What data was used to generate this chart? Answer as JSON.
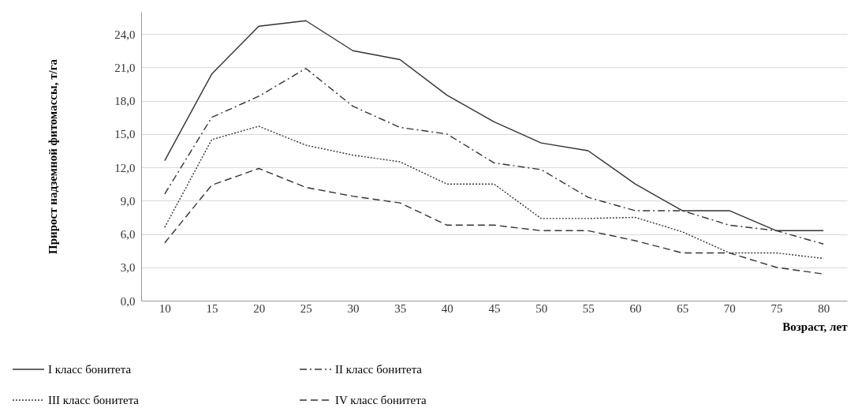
{
  "chart_data": {
    "type": "line",
    "xlabel": "Возраст,  лет",
    "ylabel": "Прирост  надземной  фитомассы, т/га",
    "categories": [
      "10",
      "15",
      "20",
      "25",
      "30",
      "35",
      "40",
      "45",
      "50",
      "55",
      "60",
      "65",
      "70",
      "75",
      "80"
    ],
    "ylim": [
      0,
      26
    ],
    "yticks": [
      {
        "value": 0,
        "label": "0,0"
      },
      {
        "value": 3,
        "label": "3,0"
      },
      {
        "value": 6,
        "label": "6,0"
      },
      {
        "value": 9,
        "label": "9,0"
      },
      {
        "value": 12,
        "label": "12,0"
      },
      {
        "value": 15,
        "label": "15,0"
      },
      {
        "value": 18,
        "label": "18,0"
      },
      {
        "value": 21,
        "label": "21,0"
      },
      {
        "value": 24,
        "label": "24,0"
      }
    ],
    "grid": "y",
    "legend": "bottom left",
    "marker": "none",
    "series": [
      {
        "name": "I класс бонитета",
        "color": "#333333",
        "line_style": "solid",
        "values": [
          12.6,
          20.4,
          24.7,
          25.2,
          22.5,
          21.7,
          18.5,
          16.1,
          14.2,
          13.5,
          10.5,
          8.1,
          8.1,
          6.3,
          6.3
        ]
      },
      {
        "name": "II класс бонитета",
        "color": "#333333",
        "line_style": "dashdot",
        "values": [
          9.6,
          16.5,
          18.4,
          20.9,
          17.5,
          15.6,
          15.0,
          12.4,
          11.8,
          9.3,
          8.1,
          8.1,
          6.8,
          6.3,
          5.1
        ]
      },
      {
        "name": "III класс бонитета",
        "color": "#333333",
        "line_style": "dotted",
        "values": [
          6.6,
          14.5,
          15.7,
          14.0,
          13.1,
          12.5,
          10.5,
          10.5,
          7.4,
          7.4,
          7.5,
          6.2,
          4.3,
          4.3,
          3.8
        ]
      },
      {
        "name": "IV класс бонитета",
        "color": "#333333",
        "line_style": "dashed",
        "values": [
          5.2,
          10.4,
          11.9,
          10.2,
          9.4,
          8.8,
          6.8,
          6.8,
          6.3,
          6.3,
          5.4,
          4.3,
          4.3,
          3.0,
          2.4
        ]
      }
    ]
  }
}
